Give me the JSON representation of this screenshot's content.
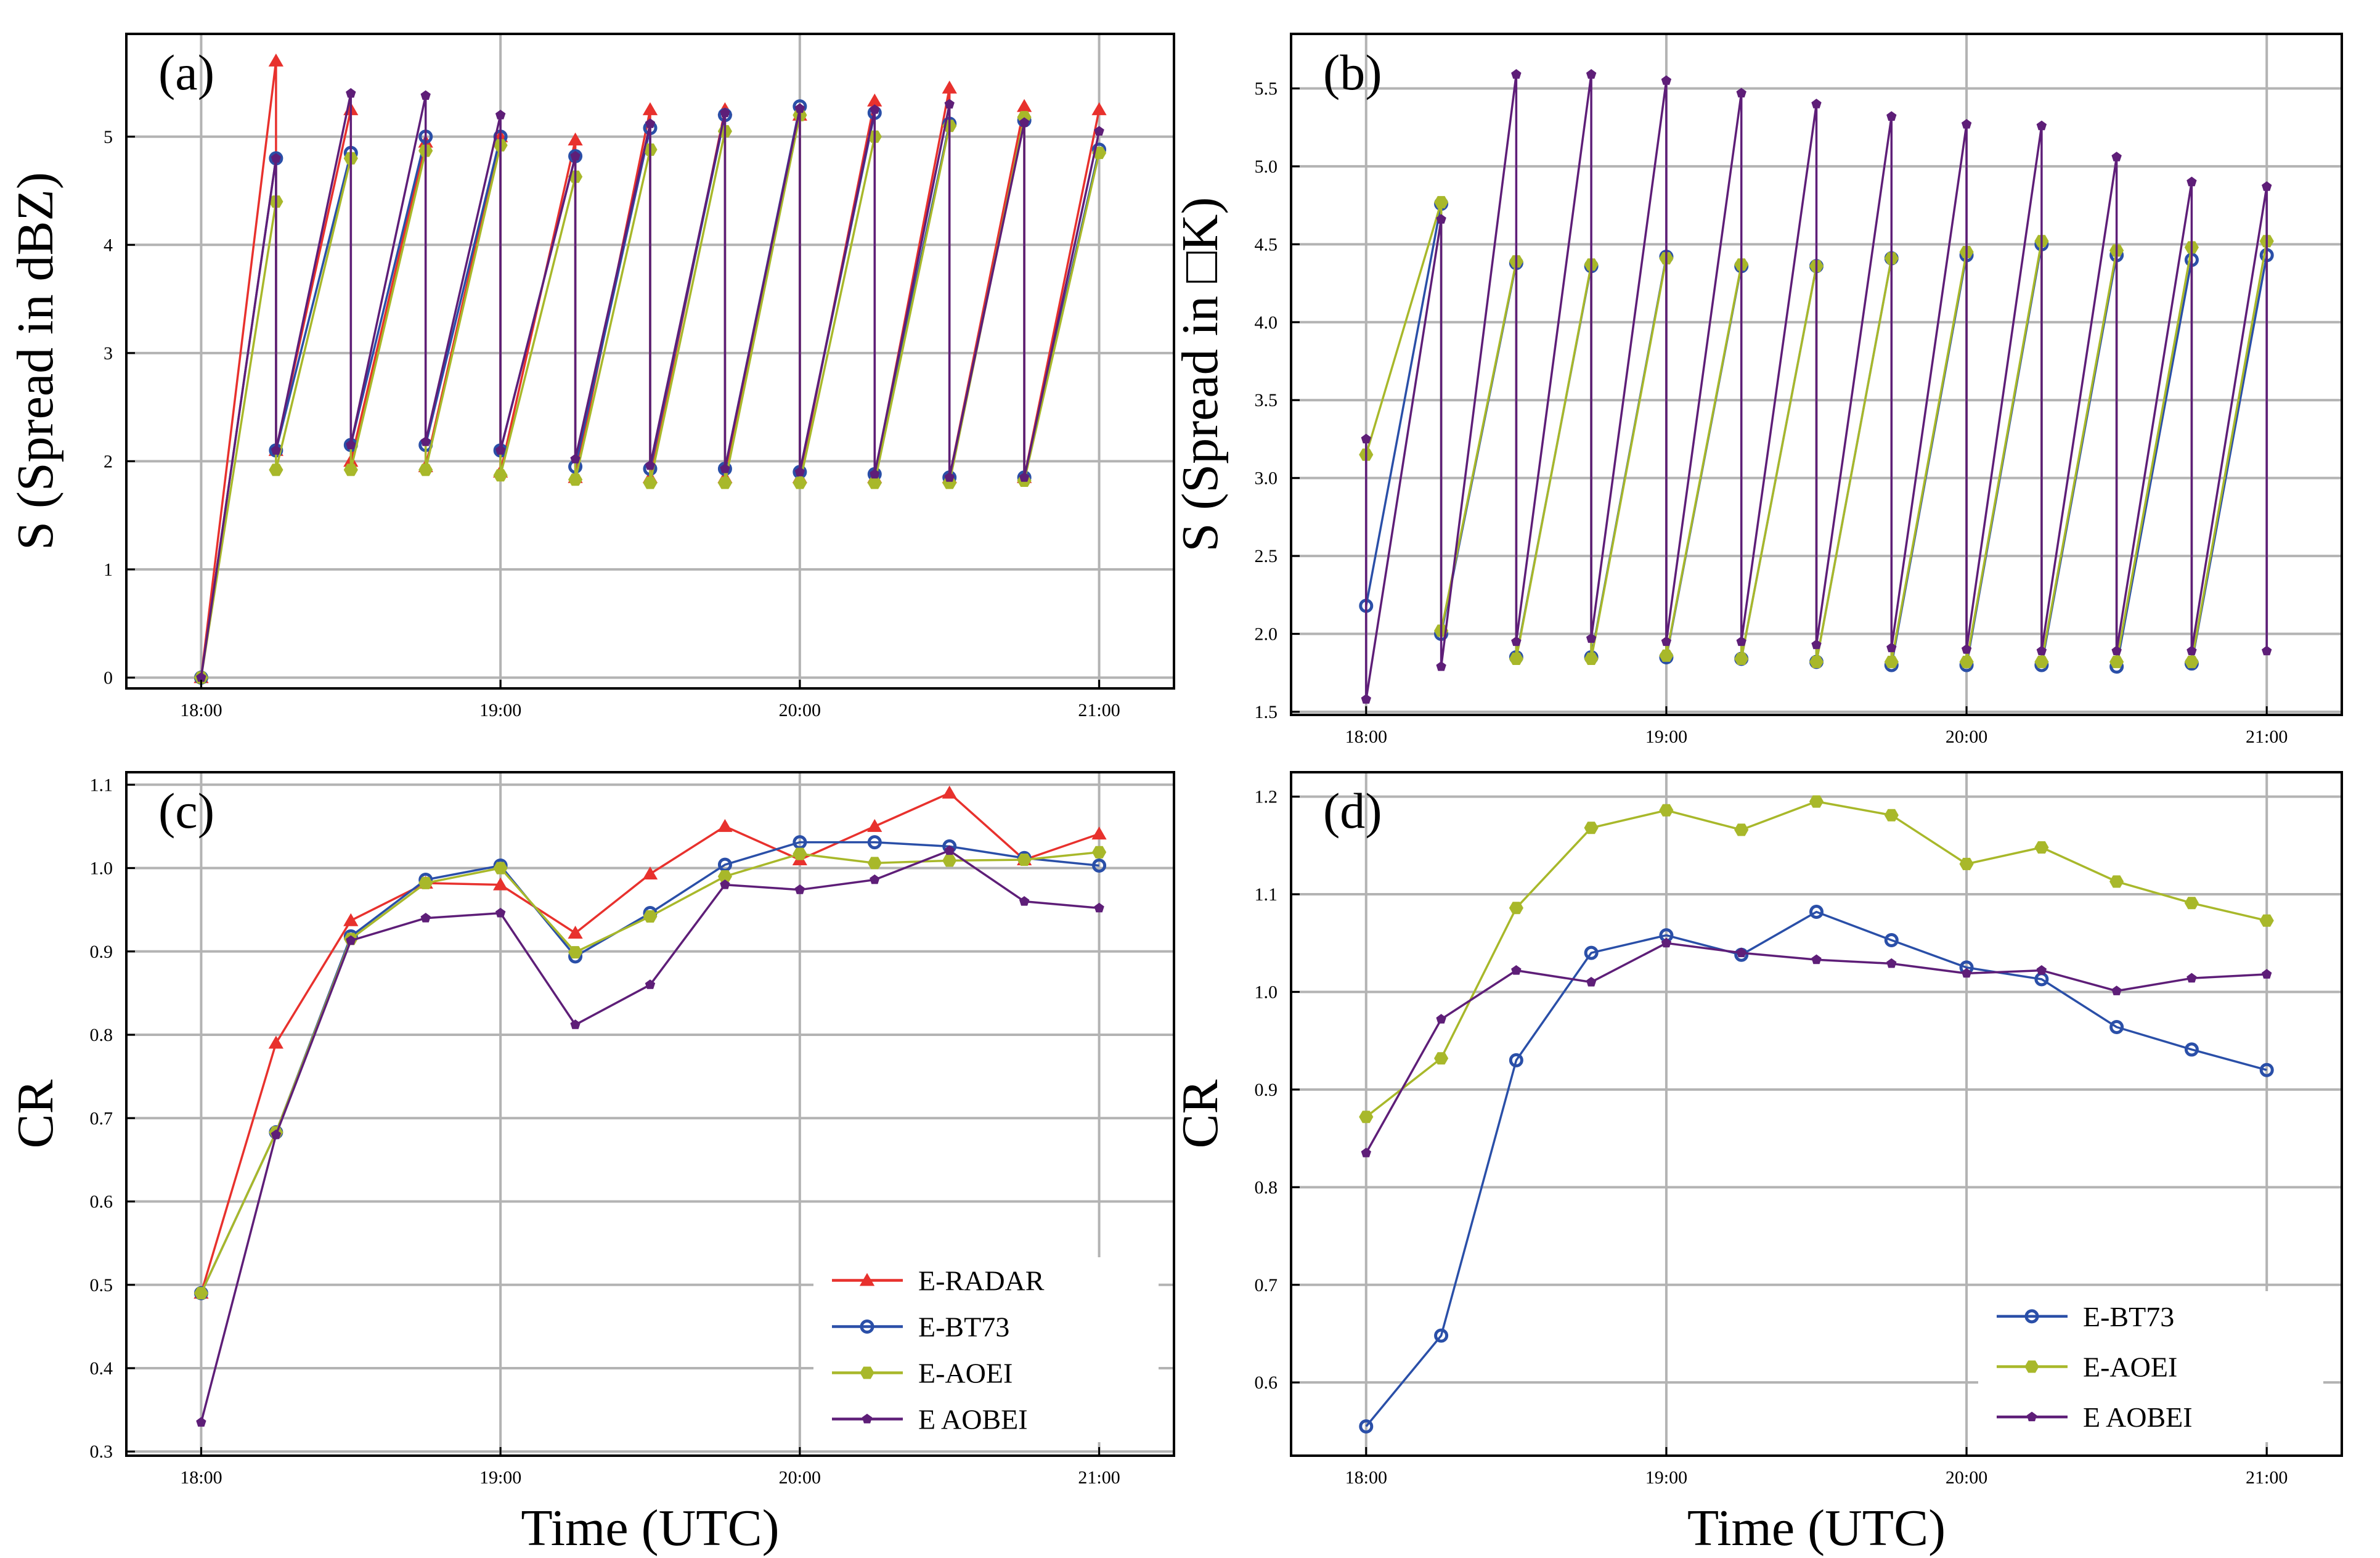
{
  "chart_data": [
    {
      "type": "line",
      "panel": "(a)",
      "ylabel": "S (Spread in dBZ)",
      "xlabel": "",
      "xlim": [
        -0.25,
        3.25
      ],
      "ylim": [
        -0.1,
        5.95
      ],
      "xticks": [
        0,
        1,
        2,
        3
      ],
      "xtick_labels": [
        "18:00",
        "19:00",
        "20:00",
        "21:00"
      ],
      "yticks": [
        0,
        1,
        2,
        3,
        4,
        5
      ],
      "ytick_labels": [
        "0",
        "1",
        "2",
        "3",
        "4",
        "5"
      ],
      "grid": true,
      "series": [
        {
          "name": "E-RADAR",
          "color": "#e8312d",
          "marker": "triangle",
          "x": [
            0,
            0.25,
            0.25,
            0.5,
            0.5,
            0.75,
            0.75,
            1.0,
            1.0,
            1.25,
            1.25,
            1.5,
            1.5,
            1.75,
            1.75,
            2.0,
            2.0,
            2.25,
            2.25,
            2.5,
            2.5,
            2.75,
            2.75,
            3.0
          ],
          "y": [
            0,
            5.7,
            2.1,
            5.25,
            2.0,
            4.95,
            1.95,
            5.0,
            1.9,
            4.97,
            1.85,
            5.25,
            1.85,
            5.25,
            1.85,
            5.2,
            1.85,
            5.33,
            1.85,
            5.45,
            1.85,
            5.28,
            1.85,
            5.25
          ]
        },
        {
          "name": "E-BT73",
          "color": "#2a4fa8",
          "marker": "circle",
          "x": [
            0,
            0.25,
            0.25,
            0.5,
            0.5,
            0.75,
            0.75,
            1.0,
            1.0,
            1.25,
            1.25,
            1.5,
            1.5,
            1.75,
            1.75,
            2.0,
            2.0,
            2.25,
            2.25,
            2.5,
            2.5,
            2.75,
            2.75,
            3.0
          ],
          "y": [
            0,
            4.8,
            2.1,
            4.85,
            2.15,
            5.0,
            2.15,
            5.0,
            2.1,
            4.82,
            1.95,
            5.08,
            1.93,
            5.2,
            1.93,
            5.28,
            1.9,
            5.22,
            1.88,
            5.12,
            1.85,
            5.15,
            1.85,
            4.88
          ]
        },
        {
          "name": "E-AOEI",
          "color": "#a8b82a",
          "marker": "hexagon",
          "x": [
            0,
            0.25,
            0.25,
            0.5,
            0.5,
            0.75,
            0.75,
            1.0,
            1.0,
            1.25,
            1.25,
            1.5,
            1.5,
            1.75,
            1.75,
            2.0,
            2.0,
            2.25,
            2.25,
            2.5,
            2.5,
            2.75,
            2.75,
            3.0
          ],
          "y": [
            0,
            4.4,
            1.92,
            4.8,
            1.92,
            4.87,
            1.92,
            4.92,
            1.87,
            4.63,
            1.83,
            4.88,
            1.8,
            5.05,
            1.8,
            5.2,
            1.8,
            5.0,
            1.8,
            5.1,
            1.8,
            5.18,
            1.82,
            4.85
          ]
        },
        {
          "name": "E AOBEI",
          "color": "#5e1e78",
          "marker": "pentagon",
          "x": [
            0,
            0.25,
            0.25,
            0.5,
            0.5,
            0.75,
            0.75,
            1.0,
            1.0,
            1.25,
            1.25,
            1.5,
            1.5,
            1.75,
            1.75,
            2.0,
            2.0,
            2.25,
            2.25,
            2.5,
            2.5,
            2.75,
            2.75,
            3.0
          ],
          "y": [
            0,
            4.8,
            2.1,
            5.4,
            2.15,
            5.38,
            2.18,
            5.2,
            2.1,
            4.82,
            2.02,
            5.12,
            1.96,
            5.22,
            1.93,
            5.26,
            1.9,
            5.25,
            1.88,
            5.3,
            1.85,
            5.13,
            1.85,
            5.05
          ]
        }
      ]
    },
    {
      "type": "line",
      "panel": "(b)",
      "ylabel": "S (Spread in □K)",
      "xlabel": "",
      "xlim": [
        -0.25,
        3.25
      ],
      "ylim": [
        1.48,
        5.85
      ],
      "xticks": [
        0,
        1,
        2,
        3
      ],
      "xtick_labels": [
        "18:00",
        "19:00",
        "20:00",
        "21:00"
      ],
      "yticks": [
        1.5,
        2.0,
        2.5,
        3.0,
        3.5,
        4.0,
        4.5,
        5.0,
        5.5
      ],
      "ytick_labels": [
        "1.5",
        "2.0",
        "2.5",
        "3.0",
        "3.5",
        "4.0",
        "4.5",
        "5.0",
        "5.5"
      ],
      "grid": true,
      "series": [
        {
          "name": "E-BT73",
          "color": "#2a4fa8",
          "marker": "circle",
          "x": [
            0,
            0.25,
            0.25,
            0.5,
            0.5,
            0.75,
            0.75,
            1.0,
            1.0,
            1.25,
            1.25,
            1.5,
            1.5,
            1.75,
            1.75,
            2.0,
            2.0,
            2.25,
            2.25,
            2.5,
            2.5,
            2.75,
            2.75,
            3.0
          ],
          "y": [
            2.18,
            4.76,
            2.0,
            4.38,
            1.85,
            4.36,
            1.85,
            4.42,
            1.85,
            4.36,
            1.84,
            4.36,
            1.82,
            4.41,
            1.8,
            4.43,
            1.8,
            4.5,
            1.8,
            4.43,
            1.79,
            4.4,
            1.81,
            4.43
          ]
        },
        {
          "name": "E-AOEI",
          "color": "#a8b82a",
          "marker": "hexagon",
          "x": [
            0,
            0.25,
            0.25,
            0.5,
            0.5,
            0.75,
            0.75,
            1.0,
            1.0,
            1.25,
            1.25,
            1.5,
            1.5,
            1.75,
            1.75,
            2.0,
            2.0,
            2.25,
            2.25,
            2.5,
            2.5,
            2.75,
            2.75,
            3.0
          ],
          "y": [
            3.15,
            4.77,
            2.02,
            4.39,
            1.84,
            4.37,
            1.84,
            4.41,
            1.86,
            4.37,
            1.84,
            4.36,
            1.82,
            4.41,
            1.82,
            4.45,
            1.82,
            4.52,
            1.82,
            4.46,
            1.82,
            4.48,
            1.82,
            4.52
          ]
        },
        {
          "name": "E AOBEI",
          "color": "#5e1e78",
          "marker": "pentagon",
          "x": [
            0,
            0,
            0.25,
            0.25,
            0.5,
            0.5,
            0.75,
            0.75,
            1.0,
            1.0,
            1.25,
            1.25,
            1.5,
            1.5,
            1.75,
            1.75,
            2.0,
            2.0,
            2.25,
            2.25,
            2.5,
            2.5,
            2.75,
            2.75,
            3.0,
            3.0
          ],
          "y": [
            3.25,
            1.58,
            4.66,
            1.79,
            5.59,
            1.95,
            5.59,
            1.97,
            5.55,
            1.95,
            5.47,
            1.95,
            5.4,
            1.93,
            5.32,
            1.91,
            5.27,
            1.9,
            5.26,
            1.89,
            5.06,
            1.89,
            4.9,
            1.89,
            4.87,
            1.89
          ]
        }
      ]
    },
    {
      "type": "line",
      "panel": "(c)",
      "ylabel": "CR",
      "xlabel": "Time (UTC)",
      "xlim": [
        -0.25,
        3.25
      ],
      "ylim": [
        0.295,
        1.115
      ],
      "xticks": [
        0,
        1,
        2,
        3
      ],
      "xtick_labels": [
        "18:00",
        "19:00",
        "20:00",
        "21:00"
      ],
      "yticks": [
        0.3,
        0.4,
        0.5,
        0.6,
        0.7,
        0.8,
        0.9,
        1.0,
        1.1
      ],
      "ytick_labels": [
        "0.3",
        "0.4",
        "0.5",
        "0.6",
        "0.7",
        "0.8",
        "0.9",
        "1.0",
        "1.1"
      ],
      "grid": true,
      "legend": "lower-right",
      "series": [
        {
          "name": "E-RADAR",
          "color": "#e8312d",
          "marker": "triangle",
          "x": [
            0,
            0.25,
            0.5,
            0.75,
            1.0,
            1.25,
            1.5,
            1.75,
            2.0,
            2.25,
            2.5,
            2.75,
            3.0
          ],
          "y": [
            0.49,
            0.79,
            0.937,
            0.982,
            0.98,
            0.922,
            0.993,
            1.05,
            1.01,
            1.05,
            1.09,
            1.01,
            1.041
          ]
        },
        {
          "name": "E-BT73",
          "color": "#2a4fa8",
          "marker": "circle",
          "x": [
            0,
            0.25,
            0.5,
            0.75,
            1.0,
            1.25,
            1.5,
            1.75,
            2.0,
            2.25,
            2.5,
            2.75,
            3.0
          ],
          "y": [
            0.49,
            0.683,
            0.918,
            0.986,
            1.003,
            0.894,
            0.946,
            1.004,
            1.031,
            1.031,
            1.026,
            1.012,
            1.003
          ]
        },
        {
          "name": "E-AOEI",
          "color": "#a8b82a",
          "marker": "hexagon",
          "x": [
            0,
            0.25,
            0.5,
            0.75,
            1.0,
            1.25,
            1.5,
            1.75,
            2.0,
            2.25,
            2.5,
            2.75,
            3.0
          ],
          "y": [
            0.49,
            0.683,
            0.915,
            0.982,
            1.0,
            0.899,
            0.942,
            0.99,
            1.017,
            1.006,
            1.009,
            1.01,
            1.019
          ]
        },
        {
          "name": "E AOBEI",
          "color": "#5e1e78",
          "marker": "pentagon",
          "x": [
            0,
            0.25,
            0.5,
            0.75,
            1.0,
            1.25,
            1.5,
            1.75,
            2.0,
            2.25,
            2.5,
            2.75,
            3.0
          ],
          "y": [
            0.335,
            0.68,
            0.913,
            0.94,
            0.946,
            0.812,
            0.86,
            0.98,
            0.974,
            0.986,
            1.021,
            0.96,
            0.952
          ]
        }
      ]
    },
    {
      "type": "line",
      "panel": "(d)",
      "ylabel": "CR",
      "xlabel": "Time (UTC)",
      "xlim": [
        -0.25,
        3.25
      ],
      "ylim": [
        0.525,
        1.225
      ],
      "xticks": [
        0,
        1,
        2,
        3
      ],
      "xtick_labels": [
        "18:00",
        "19:00",
        "20:00",
        "21:00"
      ],
      "yticks": [
        0.6,
        0.7,
        0.8,
        0.9,
        1.0,
        1.1,
        1.2
      ],
      "ytick_labels": [
        "0.6",
        "0.7",
        "0.8",
        "0.9",
        "1.0",
        "1.1",
        "1.2"
      ],
      "grid": true,
      "legend": "lower-right",
      "series": [
        {
          "name": "E-BT73",
          "color": "#2a4fa8",
          "marker": "circle",
          "x": [
            0,
            0.25,
            0.5,
            0.75,
            1.0,
            1.25,
            1.5,
            1.75,
            2.0,
            2.25,
            2.5,
            2.75,
            3.0
          ],
          "y": [
            0.555,
            0.648,
            0.93,
            1.04,
            1.058,
            1.038,
            1.082,
            1.053,
            1.025,
            1.013,
            0.964,
            0.941,
            0.92
          ]
        },
        {
          "name": "E-AOEI",
          "color": "#a8b82a",
          "marker": "hexagon",
          "x": [
            0,
            0.25,
            0.5,
            0.75,
            1.0,
            1.25,
            1.5,
            1.75,
            2.0,
            2.25,
            2.5,
            2.75,
            3.0
          ],
          "y": [
            0.872,
            0.932,
            1.086,
            1.168,
            1.186,
            1.166,
            1.195,
            1.181,
            1.131,
            1.148,
            1.113,
            1.091,
            1.073
          ]
        },
        {
          "name": "E AOBEI",
          "color": "#5e1e78",
          "marker": "pentagon",
          "x": [
            0,
            0.25,
            0.5,
            0.75,
            1.0,
            1.25,
            1.5,
            1.75,
            2.0,
            2.25,
            2.5,
            2.75,
            3.0
          ],
          "y": [
            0.835,
            0.972,
            1.022,
            1.01,
            1.05,
            1.04,
            1.033,
            1.029,
            1.019,
            1.022,
            1.001,
            1.014,
            1.018
          ]
        }
      ]
    }
  ]
}
